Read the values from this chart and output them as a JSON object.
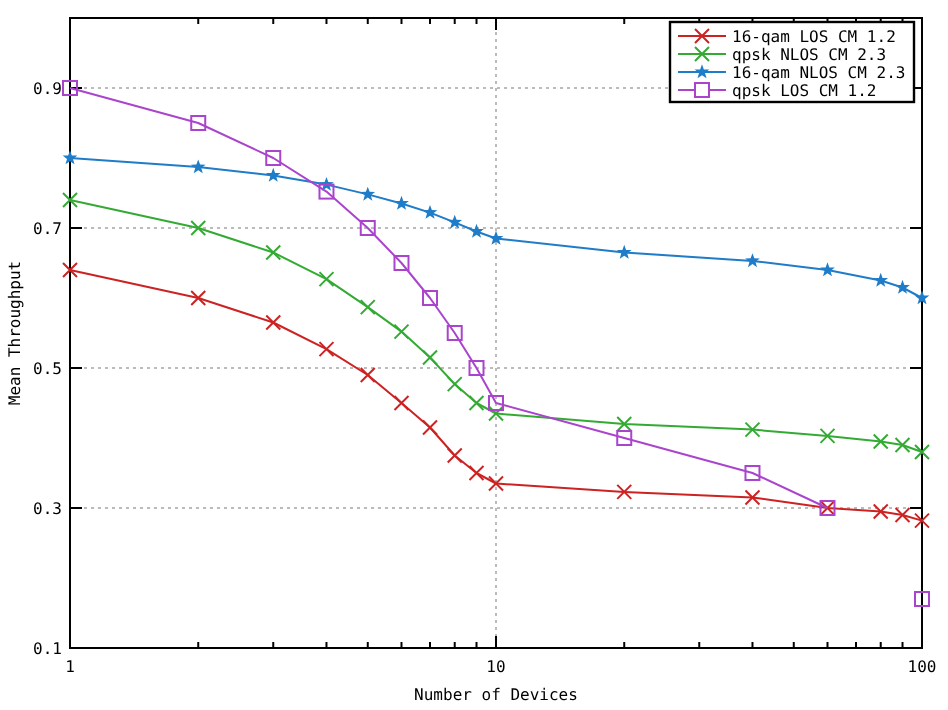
{
  "chart_data": {
    "type": "line",
    "xlabel": "Number of Devices",
    "ylabel": "Mean Throughput",
    "log": "x",
    "grid": true,
    "legend": "top right",
    "xlim": [
      1,
      100
    ],
    "ylim": [
      0.1,
      1.0
    ],
    "xticks": [
      1,
      {
        "value": 2,
        "label": null
      },
      {
        "value": 3,
        "label": null
      },
      {
        "value": 4,
        "label": null
      },
      {
        "value": 5,
        "label": null
      },
      {
        "value": 6,
        "label": null
      },
      {
        "value": 7,
        "label": null
      },
      {
        "value": 8,
        "label": null
      },
      {
        "value": 9,
        "label": null
      },
      10,
      {
        "value": 20,
        "label": null
      },
      {
        "value": 30,
        "label": null
      },
      {
        "value": 40,
        "label": null
      },
      {
        "value": 50,
        "label": null
      },
      {
        "value": 60,
        "label": null
      },
      {
        "value": 70,
        "label": null
      },
      {
        "value": 80,
        "label": null
      },
      {
        "value": 90,
        "label": null
      },
      100
    ],
    "yticks": [
      0.1,
      0.3,
      0.5,
      0.7,
      0.9
    ],
    "x": [
      1,
      2,
      3,
      4,
      5,
      6,
      7,
      8,
      9,
      10,
      20,
      40,
      60,
      80,
      90,
      100
    ],
    "series": [
      {
        "name": "16-qam LOS CM 1.2",
        "color": "#cc2222",
        "marker": "cross",
        "values": [
          0.64,
          0.6,
          0.565,
          0.527,
          0.49,
          0.45,
          0.415,
          0.375,
          0.35,
          0.335,
          0.323,
          0.315,
          0.3,
          0.295,
          0.29,
          0.282
        ]
      },
      {
        "name": "qpsk NLOS CM 2.3",
        "color": "#33aa33",
        "marker": "cross",
        "values": [
          0.74,
          0.7,
          0.665,
          0.627,
          0.587,
          0.552,
          0.515,
          0.477,
          0.45,
          0.435,
          0.42,
          0.412,
          0.403,
          0.395,
          0.39,
          0.38
        ]
      },
      {
        "name": "16-qam NLOS CM 2.3",
        "color": "#1f7cc8",
        "marker": "star",
        "values": [
          0.8,
          0.787,
          0.775,
          0.762,
          0.748,
          0.735,
          0.722,
          0.708,
          0.695,
          0.685,
          0.665,
          0.653,
          0.64,
          0.625,
          0.615,
          0.6
        ]
      },
      {
        "name": "qpsk LOS CM 1.2",
        "color": "#aa44cc",
        "marker": "square",
        "x": [
          1,
          2,
          3,
          4,
          5,
          6,
          7,
          8,
          9,
          10,
          20,
          40,
          60,
          80,
          100
        ],
        "values": [
          0.9,
          0.85,
          0.8,
          0.752,
          0.7,
          0.65,
          0.6,
          0.55,
          0.5,
          0.45,
          0.4,
          0.35,
          0.3,
          null,
          0.17
        ]
      }
    ]
  }
}
